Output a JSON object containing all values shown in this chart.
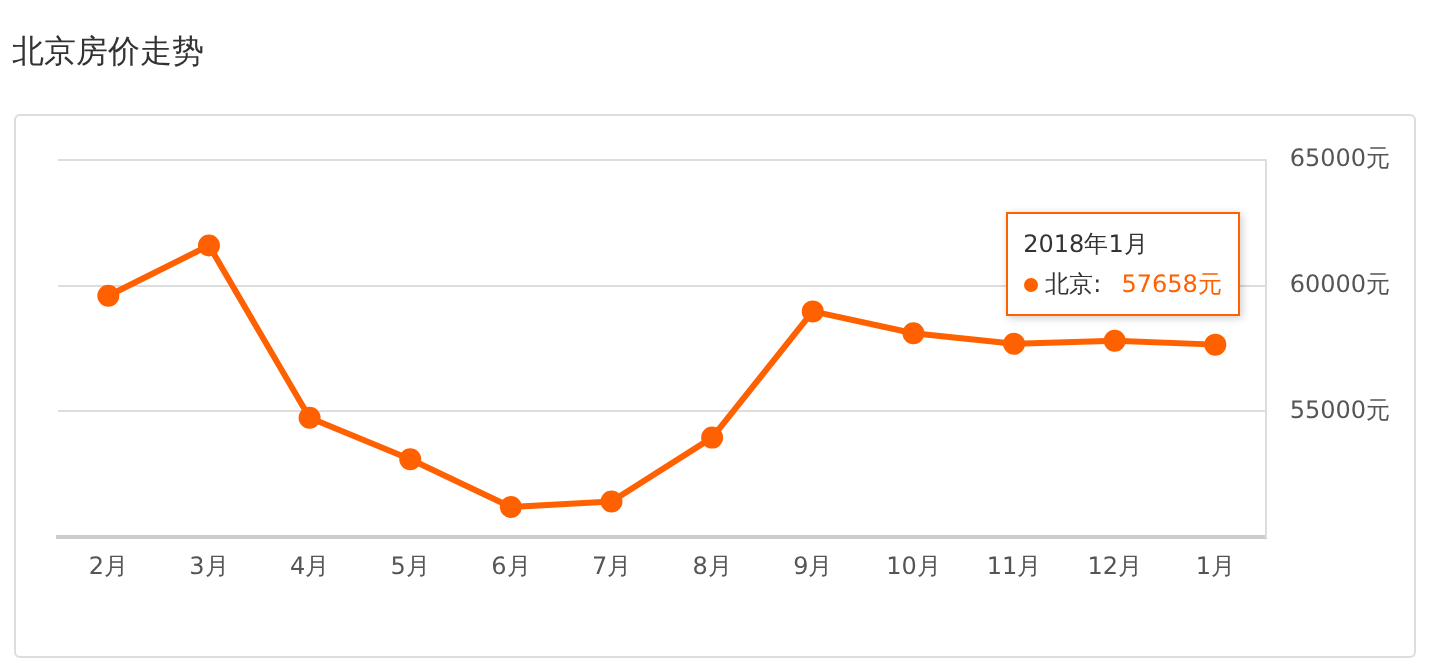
{
  "chart_data": {
    "type": "line",
    "title": "北京房价走势",
    "categories": [
      "2月",
      "3月",
      "4月",
      "5月",
      "6月",
      "7月",
      "8月",
      "9月",
      "10月",
      "11月",
      "12月",
      "1月"
    ],
    "series": [
      {
        "name": "北京:",
        "color": "#ff6000",
        "values": [
          59600,
          61600,
          54750,
          53100,
          51200,
          51420,
          53960,
          58980,
          58110,
          57690,
          57810,
          57658
        ],
        "value_labels": [
          null,
          null,
          null,
          null,
          null,
          null,
          null,
          null,
          null,
          null,
          null,
          "57658元"
        ]
      }
    ],
    "ylim": [
      50000,
      65000
    ],
    "yticks": [
      {
        "value": 50000,
        "label": null
      },
      {
        "value": 55000,
        "label": "55000元"
      },
      {
        "value": 60000,
        "label": "60000元"
      },
      {
        "value": 65000,
        "label": "65000元"
      }
    ],
    "grid": "y",
    "legend": "top right",
    "marker": "circle",
    "line_style": "solid",
    "annotations": [
      "2018年1月"
    ]
  }
}
